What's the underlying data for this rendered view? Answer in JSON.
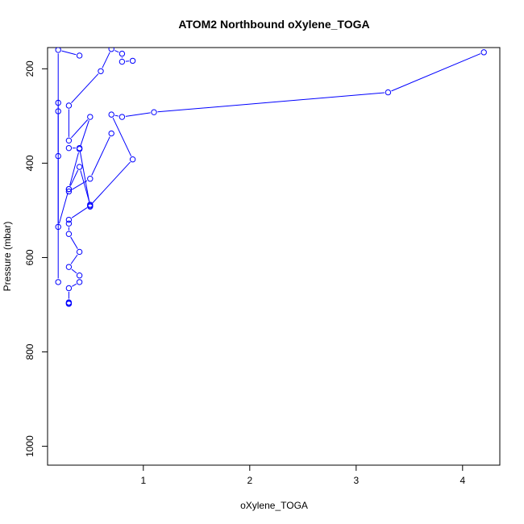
{
  "chart_data": {
    "type": "scatter",
    "title": "ATOM2 Northbound oXylene_TOGA",
    "xlabel": "oXylene_TOGA",
    "ylabel": "Pressure (mbar)",
    "xlim": [
      0.1,
      4.35
    ],
    "ylim": [
      1040,
      155
    ],
    "y_reversed": true,
    "x_ticks": [
      1,
      2,
      3,
      4
    ],
    "y_ticks": [
      200,
      400,
      600,
      800,
      1000
    ],
    "x_tick_labels": [
      "1",
      "2",
      "3",
      "4"
    ],
    "y_tick_labels": [
      "200",
      "400",
      "600",
      "800",
      "1000"
    ],
    "series_color": "#0000ff",
    "grid": false,
    "legend": "none",
    "series": [
      {
        "x": [
          4.2,
          3.3,
          1.1,
          0.8,
          0.7,
          0.9,
          0.5,
          0.3,
          0.3,
          0.3,
          0.4,
          0.3,
          0.4,
          0.4,
          0.3,
          0.3,
          0.3,
          0.3
        ],
        "y": [
          165,
          250,
          292,
          302,
          297,
          392,
          490,
          520,
          528,
          550,
          588,
          620,
          638,
          652,
          665,
          695,
          697,
          698
        ]
      },
      {
        "x": [
          0.9,
          0.8,
          0.8,
          0.7,
          0.6,
          0.3,
          0.3,
          0.5,
          0.4,
          0.3,
          0.2,
          0.2,
          0.2,
          0.2
        ],
        "y": [
          183,
          185,
          168,
          158,
          205,
          278,
          352,
          302,
          370,
          455,
          535,
          385,
          290,
          272
        ]
      },
      {
        "x": [
          0.7,
          0.5,
          0.3,
          0.3,
          0.4,
          0.5,
          0.5,
          0.4,
          0.3
        ],
        "y": [
          337,
          433,
          460,
          455,
          408,
          488,
          492,
          368,
          368
        ]
      },
      {
        "x": [
          0.2,
          0.2,
          0.4
        ],
        "y": [
          652,
          160,
          172
        ]
      }
    ]
  }
}
